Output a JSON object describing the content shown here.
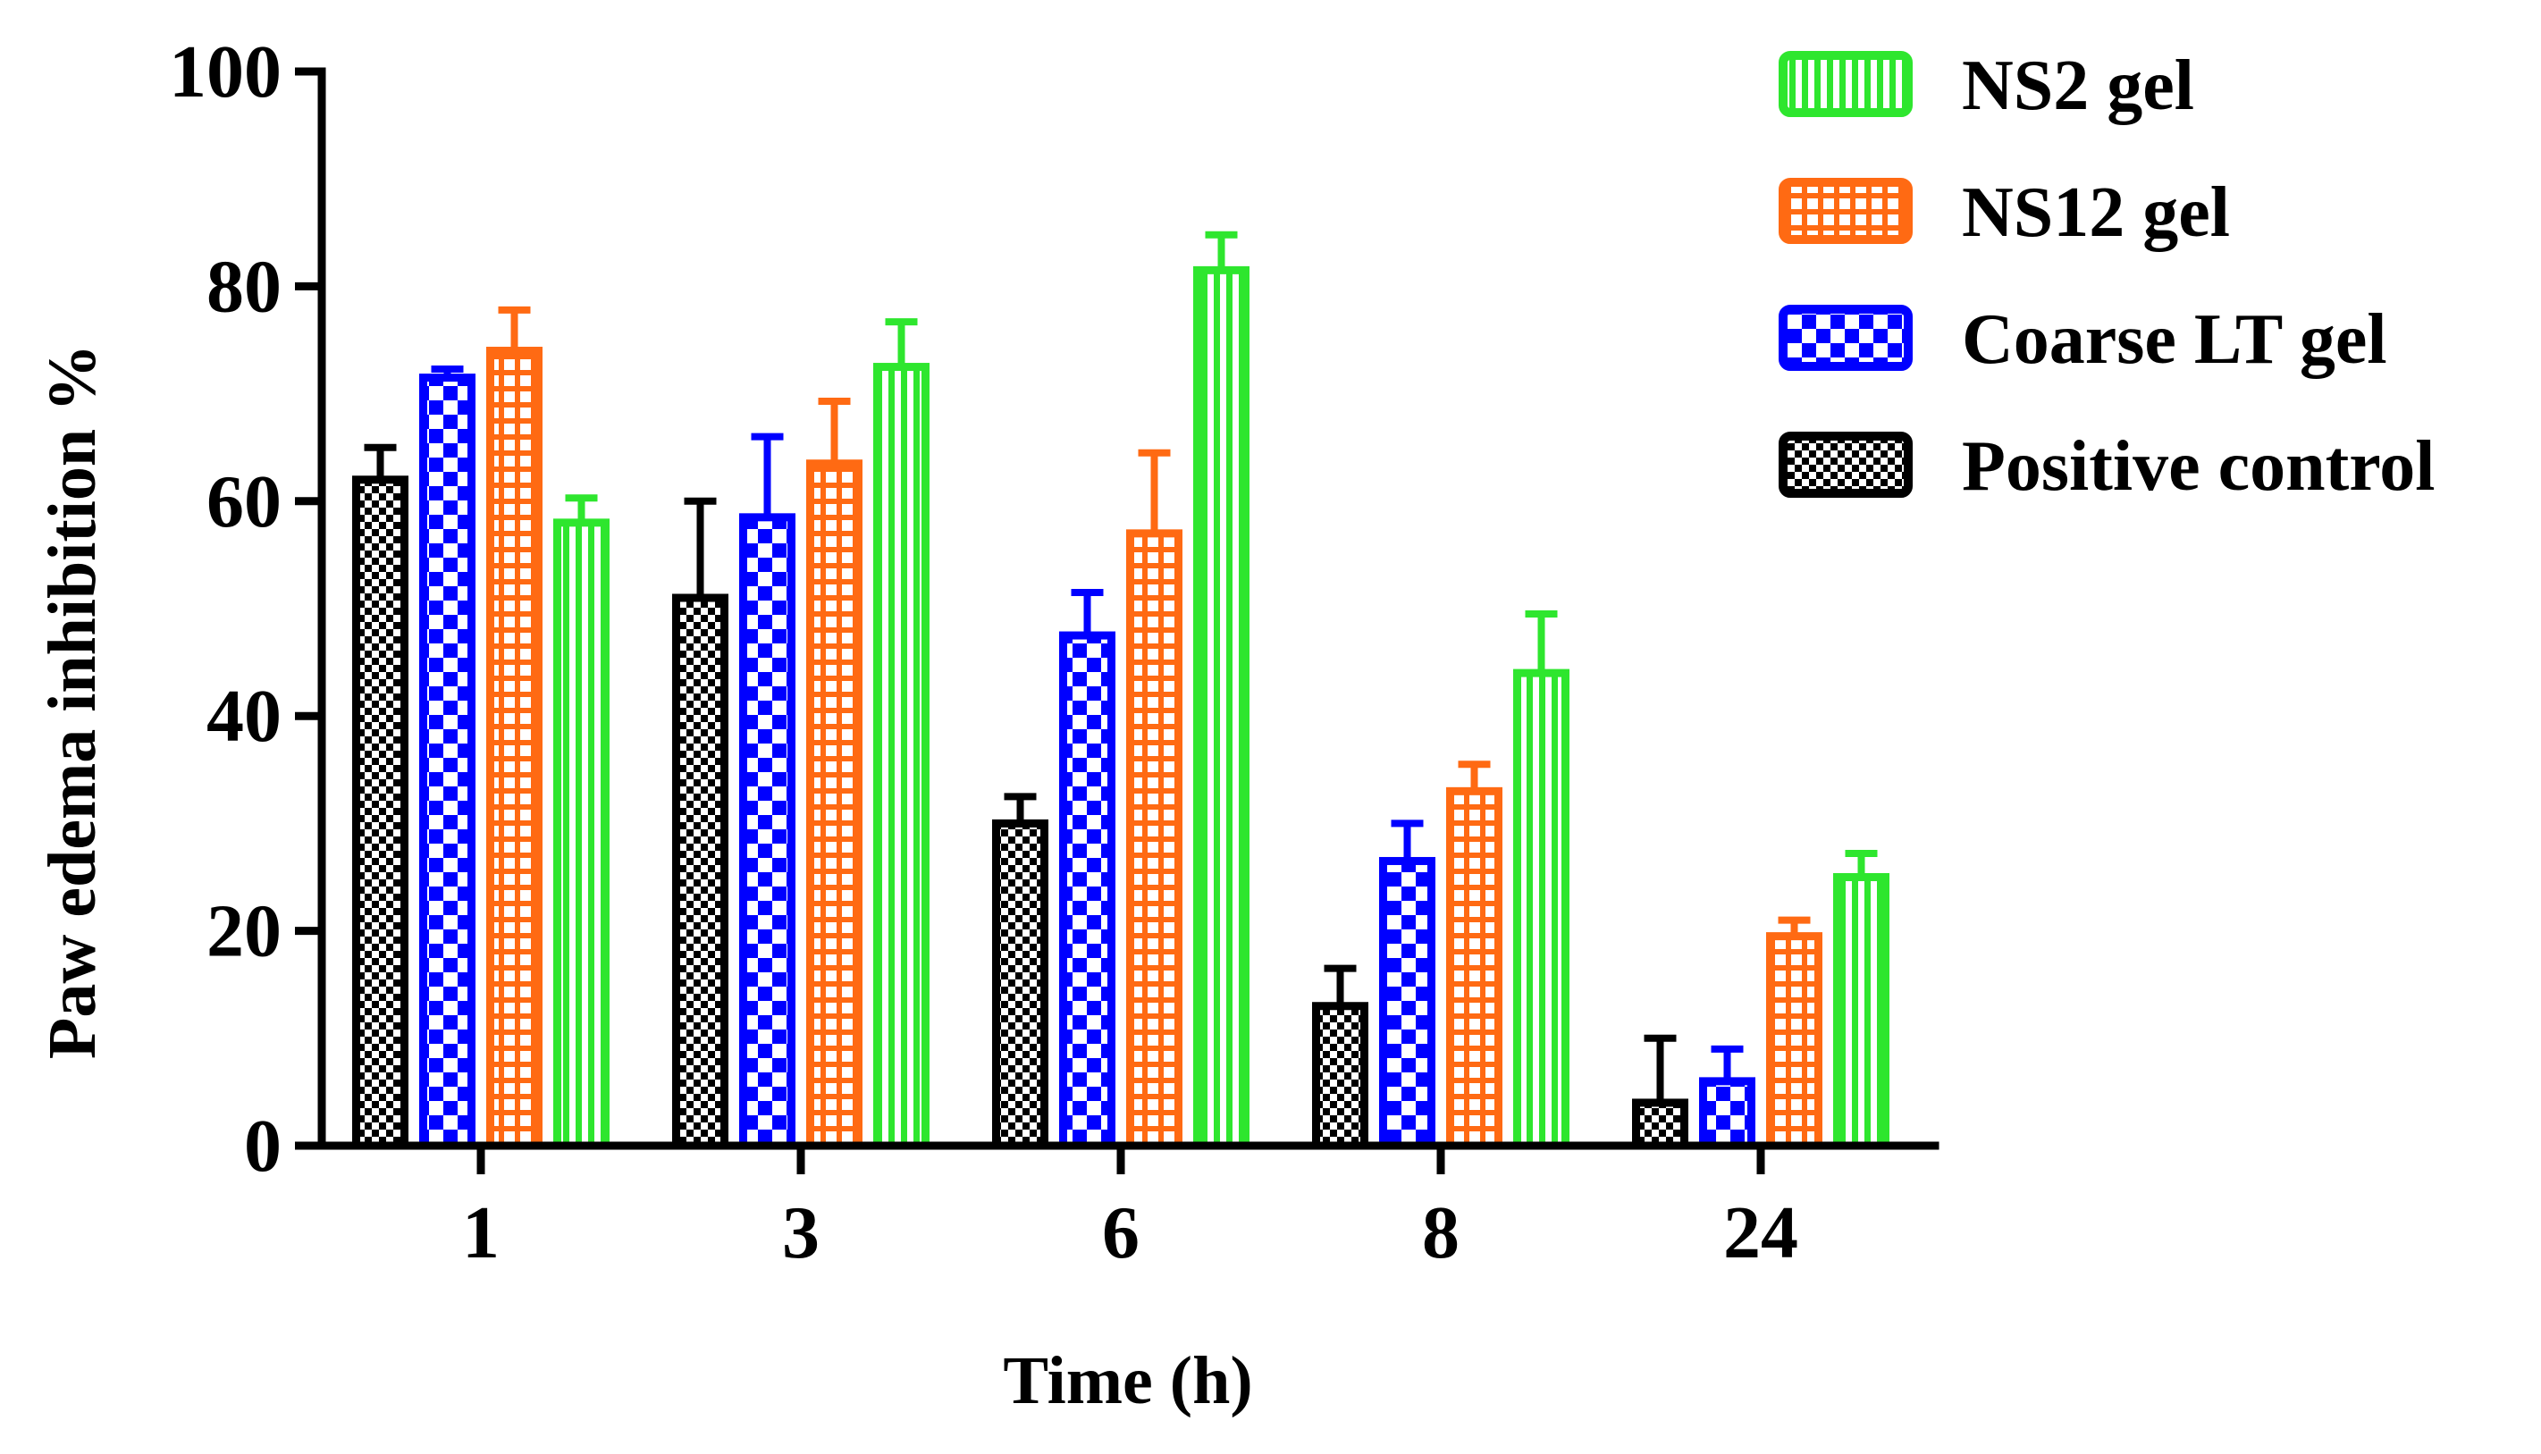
{
  "chart_data": {
    "type": "bar",
    "title": "",
    "xlabel": "Time (h)",
    "ylabel": "Paw edema inhibition %",
    "categories": [
      "1",
      "3",
      "6",
      "8",
      "24"
    ],
    "ylim": [
      0,
      100
    ],
    "yticks": [
      0,
      20,
      40,
      60,
      80,
      100
    ],
    "legend_position": "top-right",
    "series": [
      {
        "name": "Positive control",
        "color": "#000000",
        "pattern": "checker",
        "values": [
          62,
          51,
          30,
          13,
          4
        ],
        "errors": [
          3,
          9,
          2.5,
          3.5,
          6
        ]
      },
      {
        "name": "Coarse LT gel",
        "color": "#0000ff",
        "pattern": "checker-large",
        "values": [
          71.5,
          58.5,
          47.5,
          26.5,
          6
        ],
        "errors": [
          0.8,
          7.5,
          4,
          3.5,
          3
        ]
      },
      {
        "name": "NS12 gel",
        "color": "#ff6a13",
        "pattern": "grid",
        "values": [
          74,
          63.5,
          57,
          33,
          19.5
        ],
        "errors": [
          3.8,
          5.8,
          7.5,
          2.5,
          1.5
        ]
      },
      {
        "name": "NS2 gel",
        "color": "#2ee62e",
        "pattern": "vlines",
        "values": [
          58,
          72.5,
          81.5,
          44,
          25
        ],
        "errors": [
          2.3,
          4.2,
          3.3,
          5.5,
          2.2
        ]
      }
    ],
    "legend_order": [
      "NS2 gel",
      "NS12 gel",
      "Coarse LT gel",
      "Positive control"
    ]
  }
}
